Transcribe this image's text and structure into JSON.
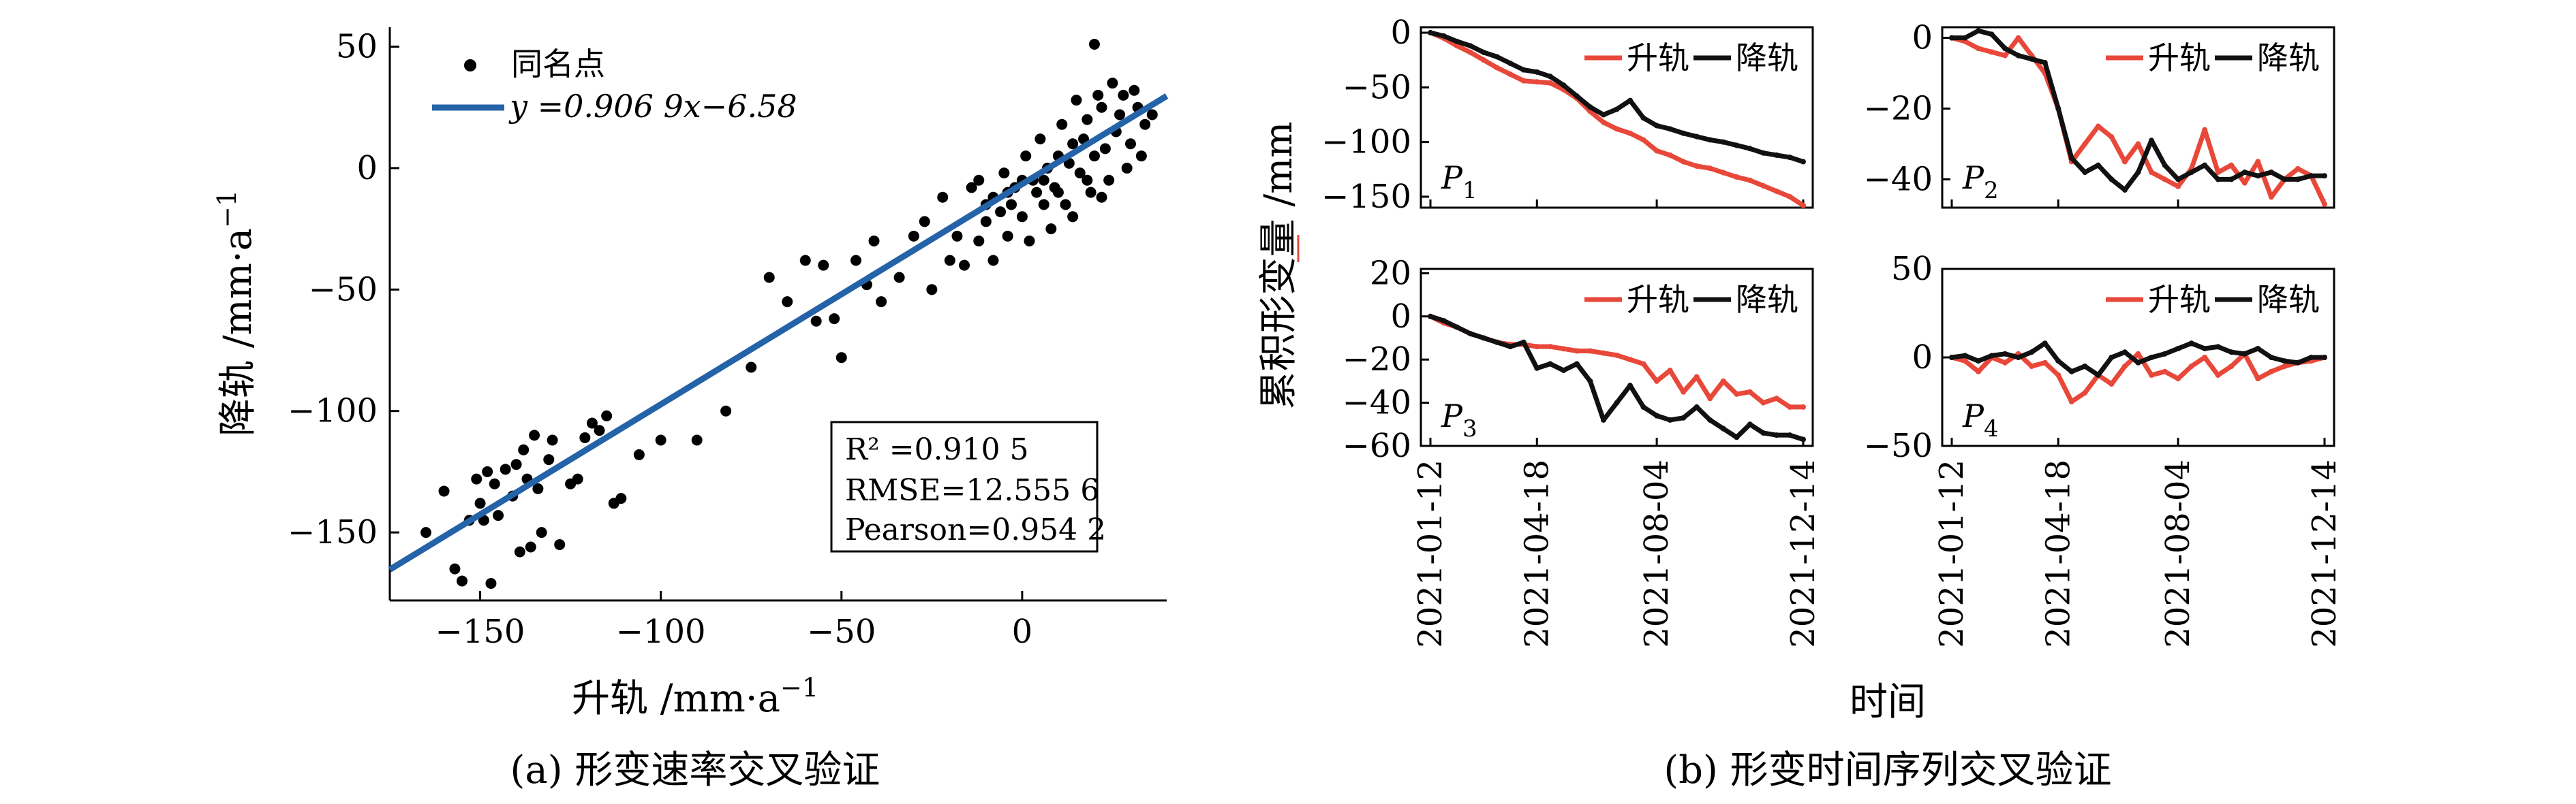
{
  "figure": {
    "caption_a": "(a) 形变速率交叉验证",
    "caption_b": "(b) 形变时间序列交叉验证"
  },
  "chart_data": [
    {
      "type": "scatter",
      "panel": "a",
      "xlabel": "升轨 /mm·a",
      "xlabel_sup": "−1",
      "ylabel": "降轨 /mm·a",
      "ylabel_sup": "−1",
      "xlim": [
        -175,
        40
      ],
      "ylim": [
        -178,
        58
      ],
      "xticks": [
        -150,
        -100,
        -50,
        0
      ],
      "yticks": [
        50,
        0,
        -50,
        -100,
        -150
      ],
      "legend": {
        "points": "同名点",
        "fit": "y =0.906 9x−6.58"
      },
      "fit": {
        "slope": 0.9069,
        "intercept": -6.58
      },
      "stats": [
        "R² =0.910 5",
        "RMSE=12.555 6",
        "Pearson=0.954 2"
      ],
      "colors": {
        "points": "#000000",
        "fit": "#2563a8"
      },
      "points": [
        [
          -165,
          -150
        ],
        [
          -160,
          -133
        ],
        [
          -157,
          -165
        ],
        [
          -155,
          -170
        ],
        [
          -153,
          -145
        ],
        [
          -151,
          -128
        ],
        [
          -150,
          -138
        ],
        [
          -149,
          -145
        ],
        [
          -148,
          -125
        ],
        [
          -147,
          -171
        ],
        [
          -146,
          -130
        ],
        [
          -145,
          -143
        ],
        [
          -143,
          -124
        ],
        [
          -141,
          -135
        ],
        [
          -140,
          -122
        ],
        [
          -139,
          -158
        ],
        [
          -138,
          -116
        ],
        [
          -137,
          -128
        ],
        [
          -136,
          -156
        ],
        [
          -135,
          -110
        ],
        [
          -134,
          -132
        ],
        [
          -133,
          -150
        ],
        [
          -131,
          -120
        ],
        [
          -130,
          -112
        ],
        [
          -128,
          -155
        ],
        [
          -125,
          -130
        ],
        [
          -123,
          -128
        ],
        [
          -121,
          -111
        ],
        [
          -119,
          -105
        ],
        [
          -117,
          -108
        ],
        [
          -115,
          -102
        ],
        [
          -113,
          -138
        ],
        [
          -111,
          -136
        ],
        [
          -106,
          -118
        ],
        [
          -100,
          -112
        ],
        [
          -90,
          -112
        ],
        [
          -82,
          -100
        ],
        [
          -75,
          -82
        ],
        [
          -70,
          -45
        ],
        [
          -65,
          -55
        ],
        [
          -60,
          -38
        ],
        [
          -57,
          -63
        ],
        [
          -55,
          -40
        ],
        [
          -52,
          -62
        ],
        [
          -50,
          -78
        ],
        [
          -46,
          -38
        ],
        [
          -43,
          -48
        ],
        [
          -41,
          -30
        ],
        [
          -39,
          -55
        ],
        [
          -34,
          -45
        ],
        [
          -30,
          -28
        ],
        [
          -27,
          -22
        ],
        [
          -25,
          -50
        ],
        [
          -22,
          -12
        ],
        [
          -20,
          -38
        ],
        [
          -18,
          -28
        ],
        [
          -16,
          -40
        ],
        [
          -14,
          -8
        ],
        [
          -12,
          -30
        ],
        [
          -10,
          -22
        ],
        [
          -8,
          -38
        ],
        [
          -6,
          -18
        ],
        [
          -4,
          -28
        ],
        [
          -2,
          -8
        ],
        [
          0,
          -20
        ],
        [
          2,
          -30
        ],
        [
          4,
          -10
        ],
        [
          6,
          -5
        ],
        [
          8,
          -25
        ],
        [
          10,
          5
        ],
        [
          12,
          -15
        ],
        [
          14,
          10
        ],
        [
          16,
          -2
        ],
        [
          18,
          20
        ],
        [
          20,
          5
        ],
        [
          22,
          25
        ],
        [
          24,
          -5
        ],
        [
          26,
          15
        ],
        [
          28,
          30
        ],
        [
          30,
          10
        ],
        [
          32,
          25
        ],
        [
          34,
          18
        ],
        [
          36,
          22
        ],
        [
          -12,
          -5
        ],
        [
          -8,
          -12
        ],
        [
          -5,
          -2
        ],
        [
          -3,
          -15
        ],
        [
          1,
          5
        ],
        [
          3,
          -5
        ],
        [
          5,
          12
        ],
        [
          7,
          0
        ],
        [
          9,
          -8
        ],
        [
          11,
          18
        ],
        [
          13,
          2
        ],
        [
          15,
          28
        ],
        [
          17,
          12
        ],
        [
          19,
          -10
        ],
        [
          21,
          30
        ],
        [
          23,
          8
        ],
        [
          25,
          35
        ],
        [
          27,
          22
        ],
        [
          29,
          0
        ],
        [
          31,
          32
        ],
        [
          33,
          5
        ],
        [
          -10,
          -15
        ],
        [
          -4,
          -10
        ],
        [
          0,
          -5
        ],
        [
          6,
          -15
        ],
        [
          10,
          -10
        ],
        [
          14,
          -20
        ],
        [
          18,
          -5
        ],
        [
          22,
          -12
        ],
        [
          20,
          51
        ]
      ]
    },
    {
      "type": "line",
      "panel": "b",
      "ylabel": "累积形变量 /mm",
      "xlabel": "时间",
      "xticks": [
        "2021-01-12",
        "2021-04-18",
        "2021-08-04",
        "2021-12-14"
      ],
      "x_days": {
        "2021-01-12": 0,
        "2021-04-18": 96,
        "2021-08-04": 204,
        "2021-12-14": 336
      },
      "series_names": [
        "升轨",
        "降轨"
      ],
      "colors": {
        "升轨": "#e8483a",
        "降轨": "#111111"
      },
      "subplots": [
        {
          "label": "P",
          "label_sub": "1",
          "ylim": [
            -160,
            5
          ],
          "yticks": [
            0,
            -50,
            -100,
            -150
          ],
          "series": [
            {
              "name": "升轨",
              "x": [
                0,
                12,
                24,
                36,
                48,
                60,
                72,
                84,
                96,
                108,
                120,
                132,
                144,
                156,
                168,
                180,
                192,
                204,
                216,
                228,
                240,
                252,
                264,
                276,
                288,
                300,
                312,
                324,
                336
              ],
              "y": [
                0,
                -5,
                -12,
                -18,
                -25,
                -32,
                -38,
                -44,
                -45,
                -46,
                -52,
                -60,
                -72,
                -82,
                -88,
                -92,
                -98,
                -108,
                -112,
                -118,
                -122,
                -124,
                -128,
                -132,
                -135,
                -140,
                -145,
                -150,
                -158
              ]
            },
            {
              "name": "降轨",
              "x": [
                0,
                12,
                24,
                36,
                48,
                60,
                72,
                84,
                96,
                108,
                120,
                132,
                144,
                156,
                168,
                180,
                192,
                204,
                216,
                228,
                240,
                252,
                264,
                276,
                288,
                300,
                312,
                324,
                336
              ],
              "y": [
                0,
                -3,
                -8,
                -12,
                -18,
                -22,
                -28,
                -34,
                -36,
                -40,
                -48,
                -58,
                -68,
                -75,
                -70,
                -62,
                -78,
                -85,
                -88,
                -92,
                -95,
                -98,
                -100,
                -103,
                -106,
                -110,
                -112,
                -114,
                -118
              ]
            }
          ]
        },
        {
          "label": "P",
          "label_sub": "2",
          "ylim": [
            -48,
            3
          ],
          "yticks": [
            0,
            -20,
            -40
          ],
          "series": [
            {
              "name": "升轨",
              "x": [
                0,
                12,
                24,
                36,
                48,
                60,
                72,
                84,
                96,
                108,
                120,
                132,
                144,
                156,
                168,
                180,
                192,
                204,
                216,
                228,
                240,
                252,
                264,
                276,
                288,
                300,
                312,
                324,
                336
              ],
              "y": [
                0,
                -1,
                -3,
                -4,
                -5,
                0,
                -5,
                -10,
                -20,
                -35,
                -30,
                -25,
                -28,
                -35,
                -30,
                -38,
                -40,
                -42,
                -37,
                -26,
                -38,
                -36,
                -41,
                -35,
                -45,
                -40,
                -37,
                -39,
                -47
              ]
            },
            {
              "name": "降轨",
              "x": [
                0,
                12,
                24,
                36,
                48,
                60,
                72,
                84,
                96,
                108,
                120,
                132,
                144,
                156,
                168,
                180,
                192,
                204,
                216,
                228,
                240,
                252,
                264,
                276,
                288,
                300,
                312,
                324,
                336
              ],
              "y": [
                0,
                0,
                2,
                1,
                -3,
                -5,
                -6,
                -7,
                -20,
                -34,
                -38,
                -36,
                -40,
                -43,
                -38,
                -29,
                -36,
                -40,
                -38,
                -36,
                -40,
                -40,
                -38,
                -39,
                -38,
                -40,
                -40,
                -39,
                -39
              ]
            }
          ]
        },
        {
          "label": "P",
          "label_sub": "3",
          "ylim": [
            -60,
            22
          ],
          "yticks": [
            20,
            0,
            -20,
            -40,
            -60
          ],
          "series": [
            {
              "name": "升轨",
              "x": [
                0,
                12,
                24,
                36,
                48,
                60,
                72,
                84,
                96,
                108,
                120,
                132,
                144,
                156,
                168,
                180,
                192,
                204,
                216,
                228,
                240,
                252,
                264,
                276,
                288,
                300,
                312,
                324,
                336
              ],
              "y": [
                0,
                -3,
                -5,
                -8,
                -10,
                -12,
                -13,
                -13,
                -14,
                -14,
                -15,
                -16,
                -16,
                -17,
                -18,
                -20,
                -22,
                -30,
                -25,
                -35,
                -28,
                -38,
                -30,
                -36,
                -35,
                -40,
                -38,
                -42,
                -42
              ]
            },
            {
              "name": "降轨",
              "x": [
                0,
                12,
                24,
                36,
                48,
                60,
                72,
                84,
                96,
                108,
                120,
                132,
                144,
                156,
                168,
                180,
                192,
                204,
                216,
                228,
                240,
                252,
                264,
                276,
                288,
                300,
                312,
                324,
                336
              ],
              "y": [
                0,
                -2,
                -5,
                -8,
                -10,
                -12,
                -14,
                -12,
                -24,
                -22,
                -25,
                -22,
                -30,
                -48,
                -40,
                -32,
                -42,
                -46,
                -48,
                -47,
                -42,
                -48,
                -52,
                -56,
                -50,
                -54,
                -55,
                -55,
                -57
              ]
            }
          ]
        },
        {
          "label": "P",
          "label_sub": "4",
          "ylim": [
            -50,
            50
          ],
          "yticks": [
            50,
            0,
            -50
          ],
          "series": [
            {
              "name": "升轨",
              "x": [
                0,
                12,
                24,
                36,
                48,
                60,
                72,
                84,
                96,
                108,
                120,
                132,
                144,
                156,
                168,
                180,
                192,
                204,
                216,
                228,
                240,
                252,
                264,
                276,
                288,
                300,
                312,
                324,
                336
              ],
              "y": [
                0,
                -2,
                -8,
                0,
                -3,
                2,
                -5,
                -3,
                -10,
                -25,
                -20,
                -10,
                -15,
                -5,
                2,
                -10,
                -8,
                -12,
                -5,
                0,
                -10,
                -5,
                2,
                -12,
                -8,
                -5,
                -3,
                -2,
                0
              ]
            },
            {
              "name": "降轨",
              "x": [
                0,
                12,
                24,
                36,
                48,
                60,
                72,
                84,
                96,
                108,
                120,
                132,
                144,
                156,
                168,
                180,
                192,
                204,
                216,
                228,
                240,
                252,
                264,
                276,
                288,
                300,
                312,
                324,
                336
              ],
              "y": [
                0,
                1,
                -2,
                1,
                2,
                0,
                3,
                8,
                -2,
                -8,
                -5,
                -10,
                0,
                3,
                -3,
                0,
                2,
                5,
                8,
                5,
                6,
                3,
                2,
                5,
                0,
                -2,
                -3,
                0,
                0
              ]
            }
          ]
        }
      ]
    }
  ]
}
